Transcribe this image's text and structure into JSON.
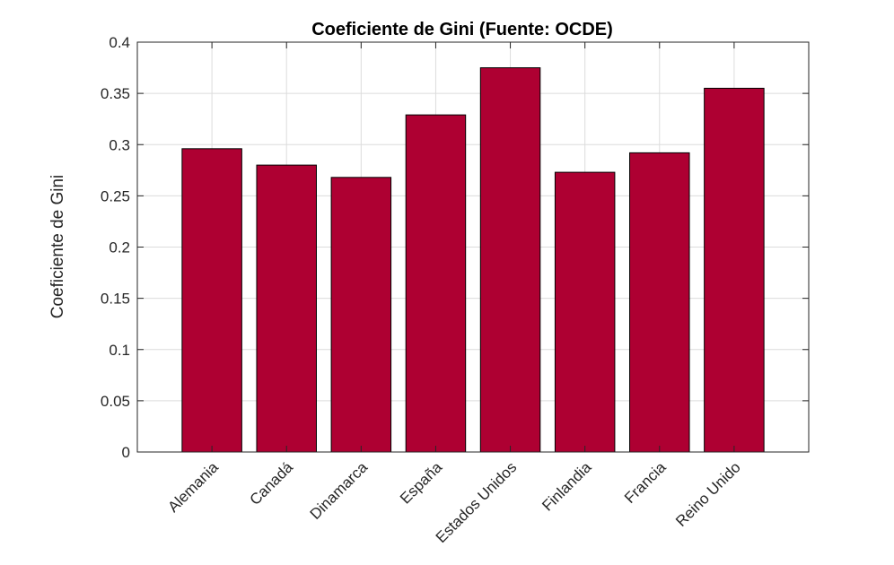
{
  "chart_data": {
    "type": "bar",
    "title": "Coeficiente de Gini (Fuente: OCDE)",
    "xlabel": "",
    "ylabel": "Coeficiente de Gini",
    "categories": [
      "Alemania",
      "Canadá",
      "Dinamarca",
      "España",
      "Estados Unidos",
      "Finlandia",
      "Francia",
      "Reino Unido"
    ],
    "values": [
      0.296,
      0.28,
      0.268,
      0.329,
      0.375,
      0.273,
      0.292,
      0.355
    ],
    "ylim": [
      0,
      0.4
    ],
    "yticks": [
      "0",
      "0.05",
      "0.1",
      "0.15",
      "0.2",
      "0.25",
      "0.3",
      "0.35",
      "0.4"
    ],
    "grid": true,
    "colors": {
      "bar": "#ae0032"
    }
  }
}
